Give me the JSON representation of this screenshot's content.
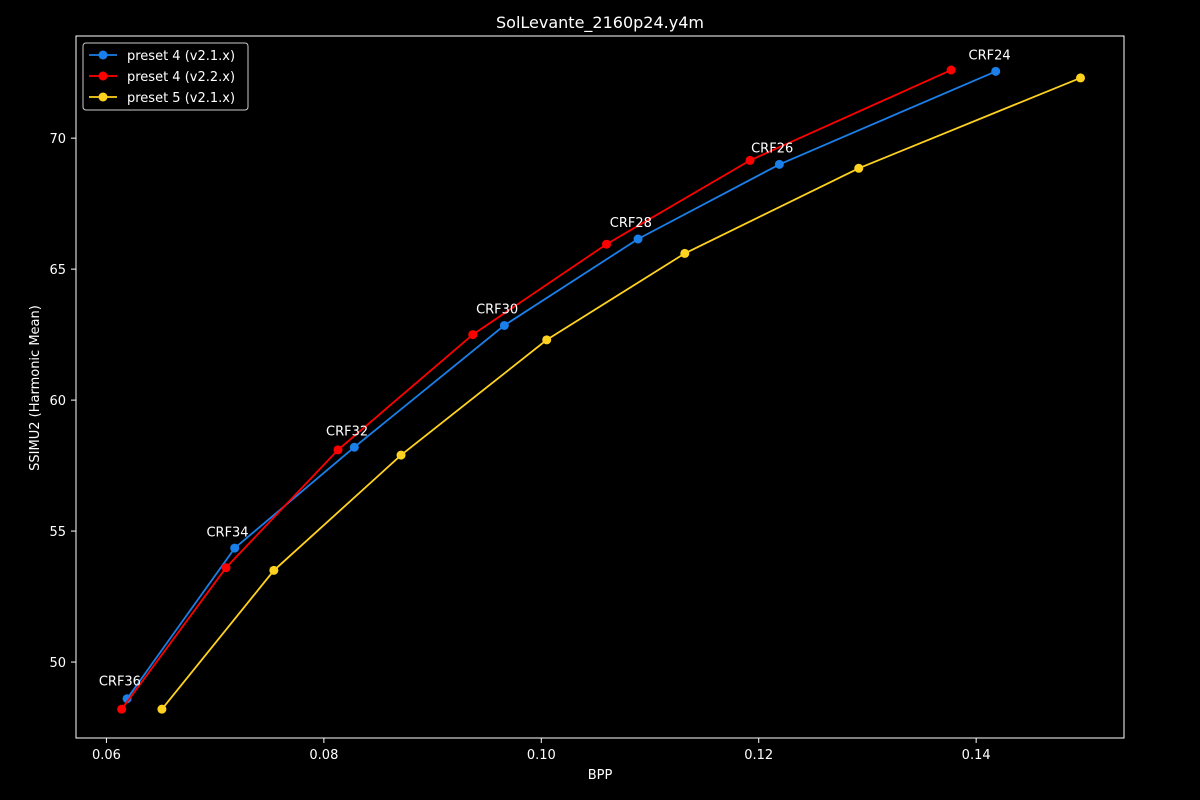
{
  "chart_data": {
    "type": "line",
    "title": "SolLevante_2160p24.y4m",
    "xlabel": "BPP",
    "ylabel": "SSIMU2 (Harmonic Mean)",
    "xlim": [
      0.0572,
      0.1536
    ],
    "ylim": [
      47.1,
      73.9
    ],
    "xticks": [
      0.06,
      0.08,
      0.1,
      0.12,
      0.14
    ],
    "xtick_labels": [
      "0.06",
      "0.08",
      "0.10",
      "0.12",
      "0.14"
    ],
    "yticks": [
      50,
      55,
      60,
      65,
      70
    ],
    "ytick_labels": [
      "50",
      "55",
      "60",
      "65",
      "70"
    ],
    "grid": false,
    "legend_position": "top-left",
    "background": "#000000",
    "foreground": "#ffffff",
    "series": [
      {
        "name": "preset 4 (v2.1.x)",
        "color": "#1a7fe8",
        "x": [
          0.0619,
          0.0718,
          0.0828,
          0.0966,
          0.1089,
          0.1219,
          0.1418
        ],
        "y": [
          48.6,
          54.35,
          58.2,
          62.85,
          66.15,
          69.0,
          72.55
        ]
      },
      {
        "name": "preset 4 (v2.2.x)",
        "color": "#ff0000",
        "x": [
          0.0614,
          0.071,
          0.0813,
          0.0937,
          0.106,
          0.1192,
          0.1377
        ],
        "y": [
          48.2,
          53.6,
          58.1,
          62.5,
          65.95,
          69.15,
          72.6
        ]
      },
      {
        "name": "preset 5 (v2.1.x)",
        "color": "#ffd21f",
        "x": [
          0.0651,
          0.0754,
          0.0871,
          0.1005,
          0.1132,
          0.1292,
          0.1496
        ],
        "y": [
          48.2,
          53.5,
          57.9,
          62.3,
          65.6,
          68.85,
          72.3
        ]
      }
    ],
    "annotations": [
      {
        "text": "CRF36",
        "x": 0.0593,
        "y": 49.1
      },
      {
        "text": "CRF34",
        "x": 0.0692,
        "y": 54.8
      },
      {
        "text": "CRF32",
        "x": 0.0802,
        "y": 58.65
      },
      {
        "text": "CRF30",
        "x": 0.094,
        "y": 63.3
      },
      {
        "text": "CRF28",
        "x": 0.1063,
        "y": 66.6
      },
      {
        "text": "CRF26",
        "x": 0.1193,
        "y": 69.45
      },
      {
        "text": "CRF24",
        "x": 0.1393,
        "y": 73.0
      }
    ]
  }
}
